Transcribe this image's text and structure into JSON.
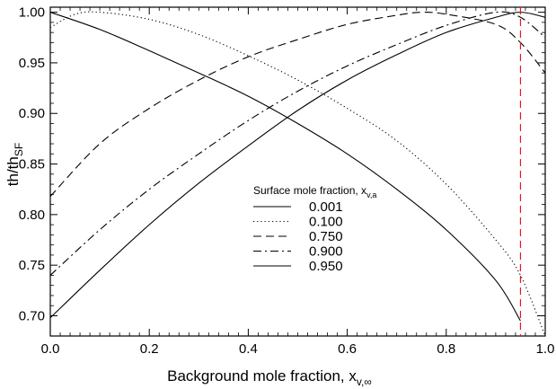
{
  "chart_data": {
    "type": "line",
    "xlabel": "Background mole fraction, x",
    "xlabel_sub": "v,∞",
    "ylabel": "th/th",
    "ylabel_sub": "SF",
    "xlim": [
      0.0,
      1.0
    ],
    "ylim": [
      0.68,
      1.005
    ],
    "xticks": [
      "0.0",
      "0.2",
      "0.4",
      "0.6",
      "0.8",
      "1.0"
    ],
    "xtick_values": [
      0.0,
      0.2,
      0.4,
      0.6,
      0.8,
      1.0
    ],
    "yticks": [
      "0.70",
      "0.75",
      "0.80",
      "0.85",
      "0.90",
      "0.95",
      "1.00"
    ],
    "ytick_values": [
      0.7,
      0.75,
      0.8,
      0.85,
      0.9,
      0.95,
      1.0
    ],
    "grid": false,
    "legend_position": "center-right",
    "legend_title": "Surface mole fraction, x",
    "legend_title_sub": "v,a",
    "reference_line": {
      "x": 0.95,
      "color": "#e8141e",
      "style": "dashed"
    },
    "series": [
      {
        "name": "0.001",
        "dash": "solid",
        "x": [
          0.0,
          0.1,
          0.2,
          0.3,
          0.4,
          0.5,
          0.6,
          0.7,
          0.8,
          0.9,
          0.95
        ],
        "y": [
          1.0,
          0.983,
          0.962,
          0.94,
          0.917,
          0.89,
          0.86,
          0.825,
          0.785,
          0.735,
          0.695
        ]
      },
      {
        "name": "0.100",
        "dash": "dotted",
        "x": [
          0.0,
          0.05,
          0.1,
          0.2,
          0.3,
          0.4,
          0.5,
          0.6,
          0.7,
          0.8,
          0.9,
          0.95,
          1.0
        ],
        "y": [
          0.985,
          0.998,
          1.0,
          0.993,
          0.978,
          0.957,
          0.933,
          0.905,
          0.873,
          0.83,
          0.775,
          0.74,
          0.68
        ]
      },
      {
        "name": "0.750",
        "dash": "dashed",
        "x": [
          0.0,
          0.1,
          0.2,
          0.3,
          0.4,
          0.5,
          0.6,
          0.7,
          0.75,
          0.8,
          0.9,
          0.95,
          1.0
        ],
        "y": [
          0.818,
          0.87,
          0.905,
          0.933,
          0.956,
          0.973,
          0.988,
          0.997,
          1.0,
          0.998,
          0.988,
          0.97,
          0.94
        ]
      },
      {
        "name": "0.900",
        "dash": "dashdot",
        "x": [
          0.0,
          0.1,
          0.2,
          0.3,
          0.4,
          0.5,
          0.6,
          0.7,
          0.8,
          0.9,
          0.95,
          1.0
        ],
        "y": [
          0.74,
          0.785,
          0.825,
          0.86,
          0.893,
          0.922,
          0.947,
          0.968,
          0.987,
          1.0,
          0.995,
          0.975
        ]
      },
      {
        "name": "0.950",
        "dash": "solid",
        "x": [
          0.0,
          0.1,
          0.2,
          0.3,
          0.4,
          0.5,
          0.6,
          0.7,
          0.8,
          0.9,
          0.95,
          1.0
        ],
        "y": [
          0.698,
          0.745,
          0.79,
          0.831,
          0.868,
          0.903,
          0.933,
          0.958,
          0.98,
          0.995,
          1.0,
          0.995
        ]
      }
    ]
  }
}
